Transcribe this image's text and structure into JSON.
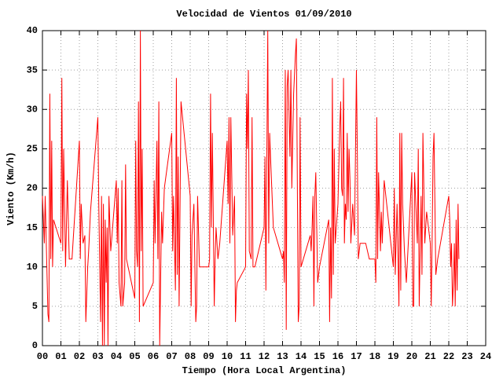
{
  "chart_data": {
    "type": "line",
    "title": "Velocidad de Vientos 01/09/2010",
    "xlabel": "Tiempo (Hora Local Argentina)",
    "ylabel": "Viento (Km/h)",
    "color": "#ff0000",
    "grid": true,
    "xlim": [
      0,
      24
    ],
    "ylim": [
      0,
      40
    ],
    "xticks": [
      {
        "value": 0,
        "label": "00"
      },
      {
        "value": 1,
        "label": "01"
      },
      {
        "value": 2,
        "label": "02"
      },
      {
        "value": 3,
        "label": "03"
      },
      {
        "value": 4,
        "label": "04"
      },
      {
        "value": 5,
        "label": "05"
      },
      {
        "value": 6,
        "label": "06"
      },
      {
        "value": 7,
        "label": "07"
      },
      {
        "value": 8,
        "label": "08"
      },
      {
        "value": 9,
        "label": "09"
      },
      10,
      11,
      12,
      13,
      14,
      15,
      16,
      17,
      18,
      19,
      20,
      21,
      22,
      23,
      24
    ],
    "yticks": [
      0,
      5,
      10,
      15,
      20,
      25,
      30,
      35,
      40
    ],
    "x": [
      0.0,
      0.1,
      0.15,
      0.3,
      0.35,
      0.4,
      0.45,
      0.5,
      0.55,
      0.6,
      1.0,
      1.05,
      1.1,
      1.15,
      1.25,
      1.35,
      1.45,
      1.6,
      2.0,
      2.05,
      2.1,
      2.2,
      2.3,
      2.35,
      2.45,
      2.5,
      2.6,
      3.0,
      3.05,
      3.15,
      3.2,
      3.25,
      3.3,
      3.35,
      3.4,
      3.45,
      3.5,
      3.55,
      3.6,
      3.7,
      4.0,
      4.05,
      4.1,
      4.15,
      4.25,
      4.3,
      4.35,
      4.45,
      4.5,
      4.55,
      5.0,
      5.05,
      5.1,
      5.15,
      5.2,
      5.25,
      5.3,
      5.35,
      5.4,
      5.45,
      6.0,
      6.05,
      6.1,
      6.2,
      6.25,
      6.3,
      6.35,
      6.45,
      6.5,
      6.6,
      7.0,
      7.05,
      7.1,
      7.2,
      7.25,
      7.3,
      7.35,
      7.4,
      7.5,
      8.0,
      8.05,
      8.1,
      8.2,
      8.3,
      8.35,
      8.4,
      8.5,
      9.0,
      9.05,
      9.1,
      9.15,
      9.2,
      9.3,
      9.35,
      9.4,
      9.5,
      9.6,
      10.0,
      10.05,
      10.1,
      10.15,
      10.2,
      10.3,
      10.4,
      10.45,
      10.5,
      10.55,
      11.0,
      11.05,
      11.1,
      11.15,
      11.2,
      11.3,
      11.35,
      11.4,
      11.5,
      12.0,
      12.05,
      12.1,
      12.2,
      12.25,
      12.3,
      12.35,
      12.5,
      13.0,
      13.05,
      13.1,
      13.15,
      13.2,
      13.25,
      13.3,
      13.4,
      13.45,
      13.5,
      13.6,
      13.7,
      13.75,
      13.8,
      13.85,
      13.9,
      13.95,
      14.0,
      14.5,
      14.55,
      14.6,
      14.65,
      14.7,
      14.75,
      14.8,
      14.9,
      15.0,
      15.5,
      15.55,
      15.6,
      15.65,
      15.7,
      15.75,
      15.8,
      15.85,
      16.0,
      16.1,
      16.15,
      16.2,
      16.25,
      16.3,
      16.35,
      16.4,
      16.45,
      16.5,
      16.55,
      16.6,
      16.65,
      16.7,
      16.8,
      16.9,
      17.0,
      17.05,
      17.1,
      17.2,
      17.5,
      17.7,
      18.0,
      18.05,
      18.1,
      18.15,
      18.2,
      18.3,
      18.35,
      18.4,
      18.5,
      19.0,
      19.05,
      19.1,
      19.2,
      19.3,
      19.35,
      19.4,
      19.45,
      19.5,
      19.6,
      19.7,
      20.0,
      20.05,
      20.1,
      20.15,
      20.2,
      20.3,
      20.35,
      20.4,
      20.5,
      20.55,
      20.6,
      20.7,
      20.8,
      21.0,
      21.05,
      21.1,
      21.15,
      21.2,
      21.3,
      21.4,
      22.0,
      22.05,
      22.1,
      22.15,
      22.2,
      22.25,
      22.3,
      22.35,
      22.4,
      22.45,
      22.5,
      22.55
    ],
    "values": [
      19,
      13,
      19,
      4,
      3,
      32,
      11,
      26,
      10,
      16,
      13,
      34,
      12,
      25,
      10,
      21,
      11,
      11,
      26,
      11,
      18,
      13,
      14,
      3,
      10,
      12,
      17,
      29,
      18,
      3,
      19,
      0,
      18,
      0,
      16,
      8,
      15,
      0,
      19,
      12,
      21,
      13,
      20,
      8,
      5,
      21,
      5,
      8,
      23,
      11,
      6,
      26,
      12,
      10,
      31,
      3,
      40,
      12,
      25,
      5,
      8,
      21,
      13,
      26,
      11,
      31,
      0,
      17,
      13,
      20,
      27,
      12,
      19,
      7,
      34,
      9,
      24,
      5,
      31,
      19,
      5,
      14,
      18,
      3,
      5,
      19,
      10,
      10,
      11,
      32,
      15,
      27,
      5,
      11,
      15,
      11,
      13,
      26,
      18,
      29,
      13,
      29,
      14,
      19,
      3,
      7,
      8,
      10,
      32,
      25,
      35,
      12,
      11,
      29,
      10,
      10,
      15,
      24,
      7,
      40,
      13,
      27,
      24,
      15,
      11,
      12,
      8,
      35,
      2,
      33,
      35,
      24,
      35,
      20,
      32,
      37,
      39,
      21,
      3,
      5,
      29,
      10,
      14,
      12,
      15,
      19,
      5,
      19,
      22,
      8,
      10,
      16,
      3,
      15,
      6,
      34,
      9,
      25,
      13,
      18,
      28,
      31,
      20,
      19,
      34,
      13,
      18,
      16,
      27,
      17,
      25,
      21,
      13,
      18,
      14,
      35,
      24,
      11,
      13,
      13,
      11,
      11,
      8,
      29,
      11,
      22,
      12,
      17,
      13,
      21,
      10,
      20,
      9,
      18,
      5,
      27,
      7,
      27,
      18,
      12,
      8,
      22,
      5,
      5,
      22,
      19,
      13,
      25,
      5,
      19,
      9,
      27,
      13,
      17,
      13,
      5,
      14,
      24,
      27,
      9,
      11,
      19,
      16,
      10,
      13,
      5,
      8,
      13,
      5,
      16,
      7,
      18,
      11
    ]
  }
}
